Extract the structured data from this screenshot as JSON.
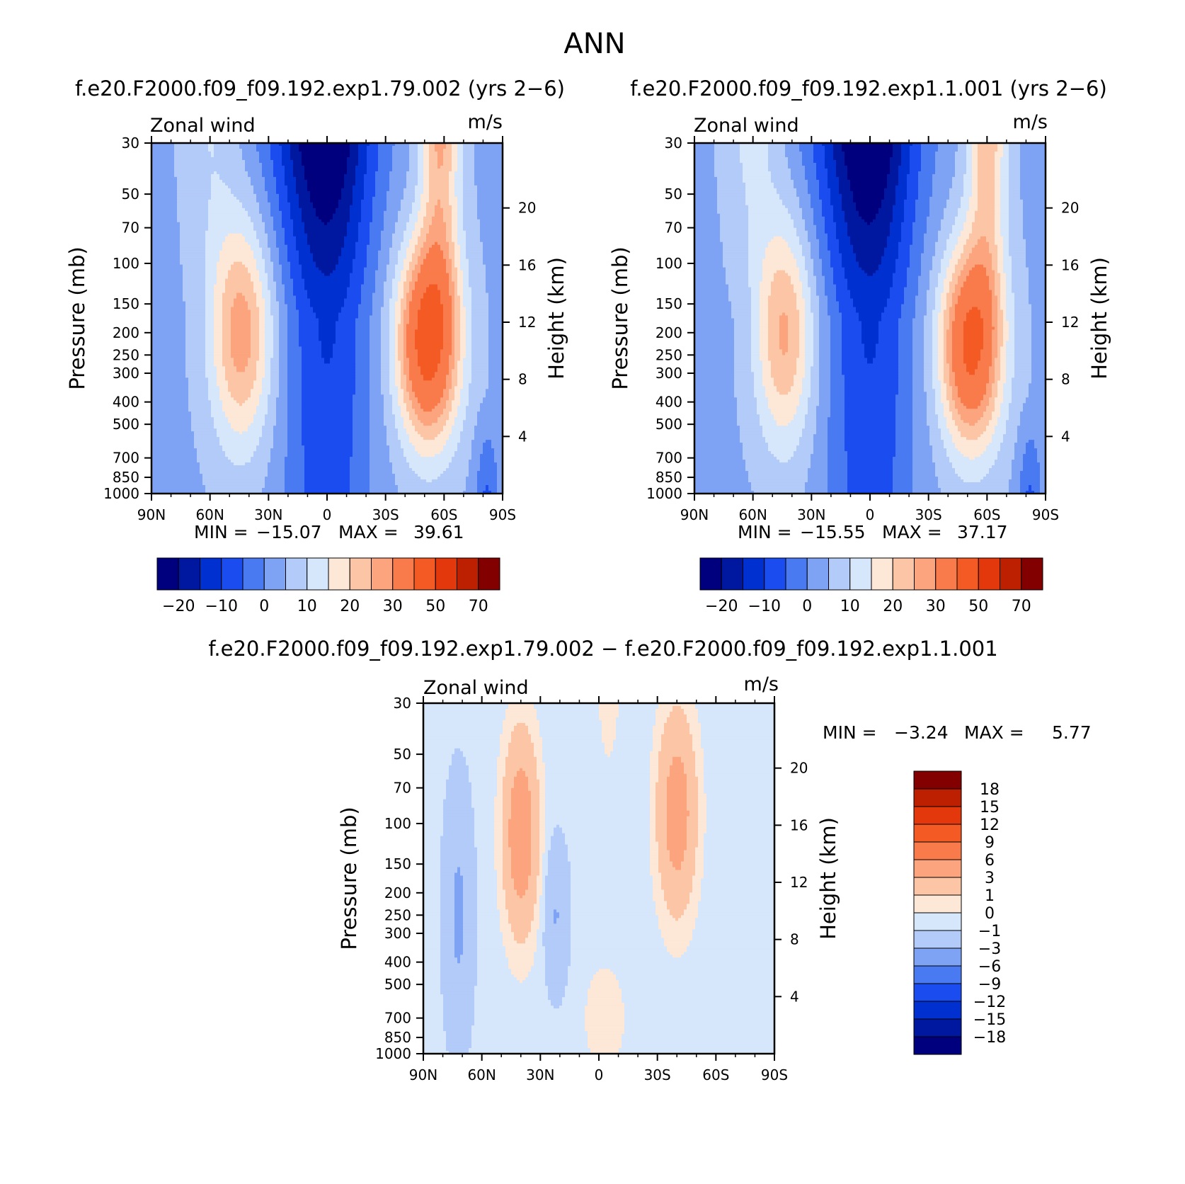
{
  "figure": {
    "title": "ANN"
  },
  "palettes": {
    "main": [
      "#00007f",
      "#0018a0",
      "#0030d0",
      "#1a4cf0",
      "#4a7af2",
      "#7fa3f4",
      "#b3cbf8",
      "#d6e7fb",
      "#fde7d6",
      "#fcc6a6",
      "#fba47e",
      "#f97b4b",
      "#f45a24",
      "#e3380b",
      "#bd2000",
      "#830000"
    ],
    "diff": [
      "#00007f",
      "#0018a0",
      "#0030d0",
      "#1a4cf0",
      "#4a7af2",
      "#7fa3f4",
      "#b3cbf8",
      "#d6e7fb",
      "#fde7d6",
      "#fcc6a6",
      "#fba47e",
      "#f97b4b",
      "#f45a24",
      "#e3380b",
      "#bd2000",
      "#830000"
    ]
  },
  "chart_data": [
    {
      "type": "heatmap",
      "title": "f.e20.F2000.f09_f09.192.exp1.79.002 (yrs 2−6)",
      "variable": "Zonal wind",
      "units": "m/s",
      "ylabel": "Pressure (mb)",
      "ylabel_right": "Height (km)",
      "x_ticks": [
        "90N",
        "60N",
        "30N",
        "0",
        "30S",
        "60S",
        "90S"
      ],
      "y_ticks": [
        "30",
        "50",
        "70",
        "100",
        "150",
        "200",
        "250",
        "300",
        "400",
        "500",
        "700",
        "850",
        "1000"
      ],
      "y_ticks_right": [
        "20",
        "16",
        "12",
        "8",
        "4"
      ],
      "min_label": "MIN =",
      "min_value": "−15.07",
      "max_label": "MAX =",
      "max_value": "39.61",
      "colorbar_labels": [
        "−20",
        "−10",
        "0",
        "10",
        "20",
        "30",
        "50",
        "70"
      ],
      "features": [
        {
          "lat": -55,
          "p": 200,
          "value": 39.61
        },
        {
          "lat": 45,
          "p": 200,
          "value": 22
        },
        {
          "lat": 0,
          "p": 60,
          "value": -15.07
        }
      ]
    },
    {
      "type": "heatmap",
      "title": "f.e20.F2000.f09_f09.192.exp1.1.001 (yrs 2−6)",
      "variable": "Zonal wind",
      "units": "m/s",
      "ylabel": "Pressure (mb)",
      "ylabel_right": "Height (km)",
      "x_ticks": [
        "90N",
        "60N",
        "30N",
        "0",
        "30S",
        "60S",
        "90S"
      ],
      "y_ticks": [
        "30",
        "50",
        "70",
        "100",
        "150",
        "200",
        "250",
        "300",
        "400",
        "500",
        "700",
        "850",
        "1000"
      ],
      "y_ticks_right": [
        "20",
        "16",
        "12",
        "8",
        "4"
      ],
      "min_label": "MIN =",
      "min_value": "−15.55",
      "max_label": "MAX =",
      "max_value": "37.17",
      "colorbar_labels": [
        "−20",
        "−10",
        "0",
        "10",
        "20",
        "30",
        "50",
        "70"
      ],
      "features": [
        {
          "lat": -55,
          "p": 200,
          "value": 37.17
        },
        {
          "lat": 45,
          "p": 200,
          "value": 20
        },
        {
          "lat": 0,
          "p": 50,
          "value": -15.55
        }
      ]
    },
    {
      "type": "heatmap",
      "title": "f.e20.F2000.f09_f09.192.exp1.79.002 − f.e20.F2000.f09_f09.192.exp1.1.001",
      "variable": "Zonal wind",
      "units": "m/s",
      "ylabel": "Pressure (mb)",
      "ylabel_right": "Height (km)",
      "x_ticks": [
        "90N",
        "60N",
        "30N",
        "0",
        "30S",
        "60S",
        "90S"
      ],
      "y_ticks": [
        "30",
        "50",
        "70",
        "100",
        "150",
        "200",
        "250",
        "300",
        "400",
        "500",
        "700",
        "850",
        "1000"
      ],
      "y_ticks_right": [
        "20",
        "16",
        "12",
        "8",
        "4"
      ],
      "min_label": "MIN =",
      "min_value": "−3.24",
      "max_label": "MAX =",
      "max_value": "5.77",
      "colorbar_labels": [
        "18",
        "15",
        "12",
        "9",
        "6",
        "3",
        "1",
        "0",
        "−1",
        "−3",
        "−6",
        "−9",
        "−12",
        "−15",
        "−18"
      ],
      "features": [
        {
          "lat": 42,
          "p": 100,
          "value": 5.77
        },
        {
          "lat": -38,
          "p": 100,
          "value": 5
        },
        {
          "lat": 20,
          "p": 300,
          "value": -3.24
        }
      ]
    }
  ]
}
